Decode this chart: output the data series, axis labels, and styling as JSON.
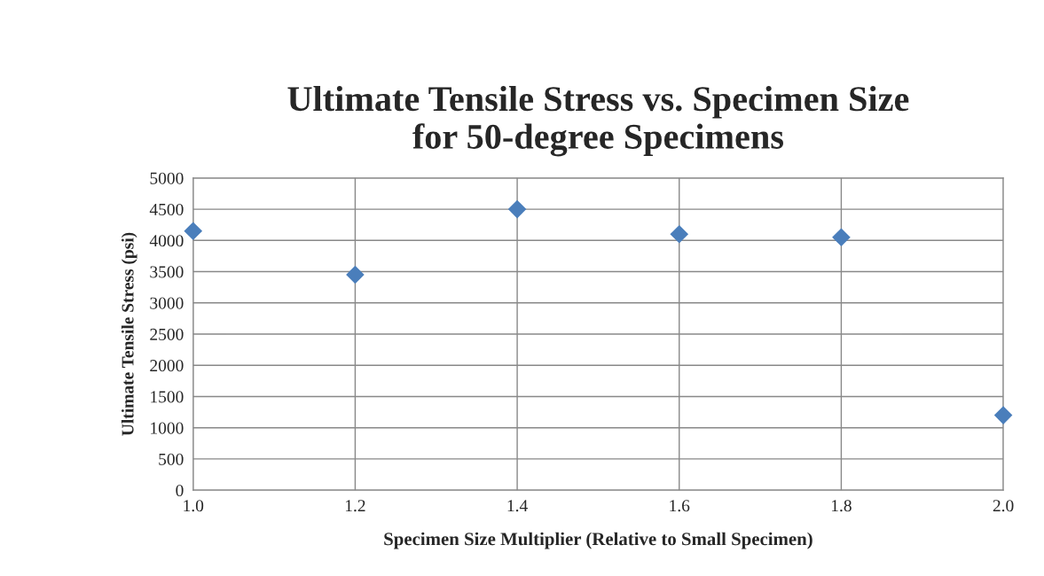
{
  "chart_data": {
    "type": "scatter",
    "title": "Ultimate Tensile Stress vs. Specimen Size\nfor 50-degree Specimens",
    "xlabel": "Specimen Size Multiplier (Relative to Small Specimen)",
    "ylabel": "Ultimate Tensile Stress (psi)",
    "x": [
      1.0,
      1.2,
      1.4,
      1.6,
      1.8,
      2.0
    ],
    "series": [
      {
        "color": "#4a7ebb",
        "values": [
          4150,
          3450,
          4500,
          4100,
          4050,
          1200
        ]
      }
    ],
    "xlim": [
      1.0,
      2.0
    ],
    "xticks": [
      {
        "value": 1.0,
        "label": "1.0"
      },
      {
        "value": 1.2,
        "label": "1.2"
      },
      {
        "value": 1.4,
        "label": "1.4"
      },
      {
        "value": 1.6,
        "label": "1.6"
      },
      {
        "value": 1.8,
        "label": "1.8"
      },
      {
        "value": 2.0,
        "label": "2.0"
      }
    ],
    "ylim": [
      0,
      5000
    ],
    "yticks": [
      0,
      500,
      1000,
      1500,
      2000,
      2500,
      3000,
      3500,
      4000,
      4500,
      5000
    ],
    "grid": true,
    "marker": "diamond"
  }
}
